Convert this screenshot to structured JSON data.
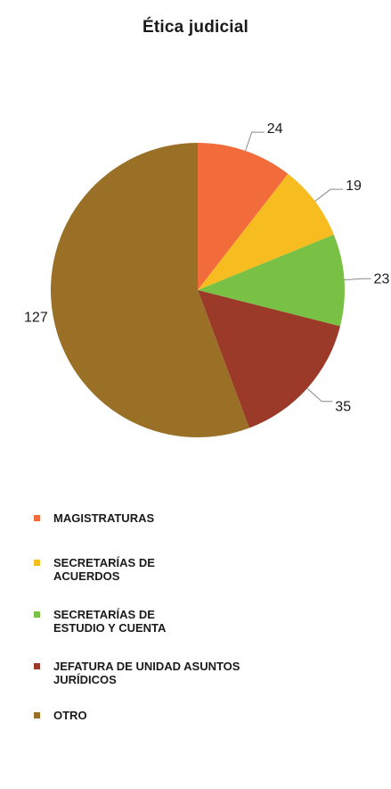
{
  "chart_data": {
    "type": "pie",
    "title": "Ética judicial",
    "categories": [
      "MAGISTRATURAS",
      "SECRETARÍAS DE ACUERDOS",
      "SECRETARÍAS DE ESTUDIO Y CUENTA",
      "JEFATURA DE UNIDAD ASUNTOS JURÍDICOS",
      "OTRO"
    ],
    "legend_lines": [
      [
        "MAGISTRATURAS"
      ],
      [
        "SECRETARÍAS DE",
        "ACUERDOS"
      ],
      [
        "SECRETARÍAS DE",
        "ESTUDIO Y CUENTA"
      ],
      [
        "JEFATURA DE UNIDAD ASUNTOS",
        "JURÍDICOS"
      ],
      [
        "OTRO"
      ]
    ],
    "values": [
      24,
      19,
      23,
      35,
      127
    ],
    "data_labels": [
      "24",
      "19",
      "23",
      "35",
      "127"
    ],
    "colors": [
      "#f26b3a",
      "#f7bd20",
      "#79c144",
      "#9c3a2a",
      "#9a7027"
    ],
    "legend_placement": "bottom",
    "start": "top, clockwise"
  }
}
